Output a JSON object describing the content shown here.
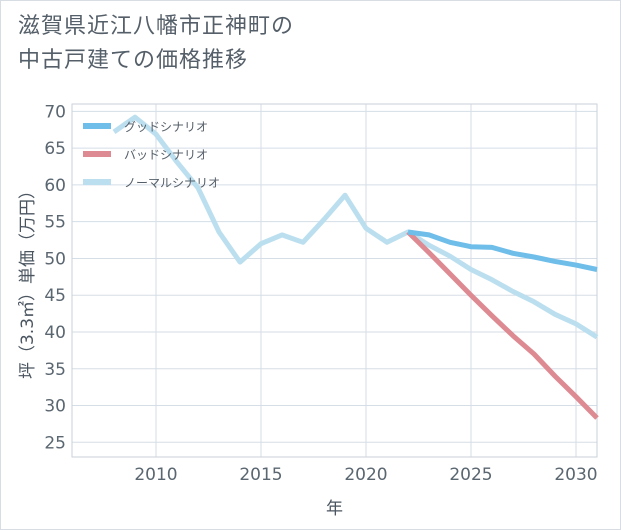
{
  "chart_data": {
    "type": "line",
    "title_lines": [
      "滋賀県近江八幡市正神町の",
      "中古戸建ての価格推移"
    ],
    "xlabel": "年",
    "ylabel": "坪（3.3㎡）単価（万円）",
    "xlim": [
      2006,
      2031
    ],
    "ylim": [
      23,
      71
    ],
    "xticks": [
      2010,
      2015,
      2020,
      2025,
      2030
    ],
    "yticks": [
      25,
      30,
      35,
      40,
      45,
      50,
      55,
      60,
      65,
      70
    ],
    "grid": true,
    "legend_position": "top-left",
    "series": [
      {
        "name": "グッドシナリオ",
        "color": "#6fbde9",
        "x": [
          2022,
          2023,
          2024,
          2025,
          2026,
          2027,
          2028,
          2029,
          2030,
          2031
        ],
        "y": [
          53.6,
          53.2,
          52.2,
          51.6,
          51.5,
          50.7,
          50.2,
          49.6,
          49.1,
          48.5
        ]
      },
      {
        "name": "バッドシナリオ",
        "color": "#dd8a92",
        "x": [
          2022,
          2023,
          2024,
          2025,
          2026,
          2027,
          2028,
          2029,
          2030,
          2031
        ],
        "y": [
          53.6,
          50.8,
          47.9,
          45.0,
          42.2,
          39.5,
          37.0,
          34.0,
          31.2,
          28.3
        ]
      },
      {
        "name": "ノーマルシナリオ",
        "color": "#bcdfef",
        "x": [
          2008,
          2009,
          2010,
          2011,
          2012,
          2013,
          2014,
          2015,
          2016,
          2017,
          2018,
          2019,
          2020,
          2021,
          2022,
          2023,
          2024,
          2025,
          2026,
          2027,
          2028,
          2029,
          2030,
          2031
        ],
        "y": [
          67.2,
          69.2,
          66.9,
          63.1,
          59.6,
          53.6,
          49.5,
          52.0,
          53.2,
          52.2,
          55.3,
          58.6,
          54.1,
          52.2,
          53.6,
          51.8,
          50.3,
          48.5,
          47.1,
          45.5,
          44.1,
          42.4,
          41.1,
          39.3
        ]
      }
    ]
  }
}
